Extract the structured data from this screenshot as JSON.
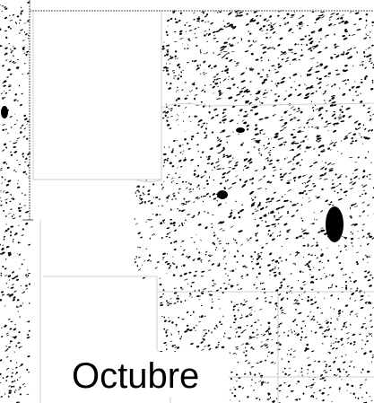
{
  "map": {
    "label": "Octubre"
  }
}
